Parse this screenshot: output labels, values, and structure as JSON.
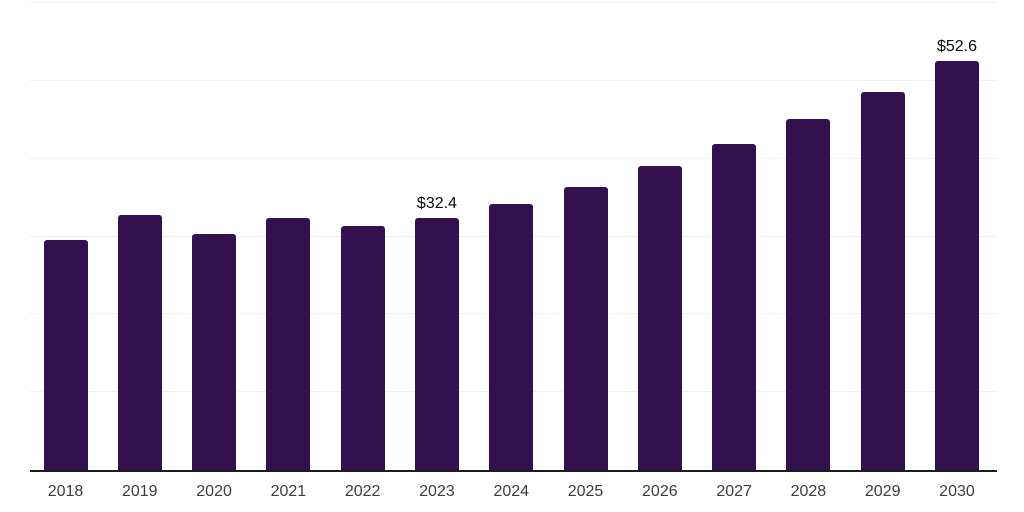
{
  "chart_data": {
    "type": "bar",
    "title": "",
    "categories": [
      "2018",
      "2019",
      "2020",
      "2021",
      "2022",
      "2023",
      "2024",
      "2025",
      "2026",
      "2027",
      "2028",
      "2029",
      "2030"
    ],
    "values": [
      29.5,
      32.8,
      30.3,
      32.4,
      31.3,
      32.4,
      34.2,
      36.4,
      39.0,
      41.9,
      45.1,
      48.6,
      52.6
    ],
    "annotations": [
      {
        "category": "2023",
        "text": "$32.4"
      },
      {
        "category": "2030",
        "text": "$52.6"
      }
    ],
    "xlabel": "",
    "ylabel": "",
    "ylim": [
      0,
      60
    ],
    "grid_step": 10,
    "grid": true,
    "legend": "none",
    "colors": {
      "bar": "#33114f",
      "gridline": "#f0f0f3",
      "axis_line": "#1c1c1c",
      "tick_label": "#3d3d3d",
      "data_label": "#0a0a0a",
      "background": "#ffffff"
    }
  }
}
